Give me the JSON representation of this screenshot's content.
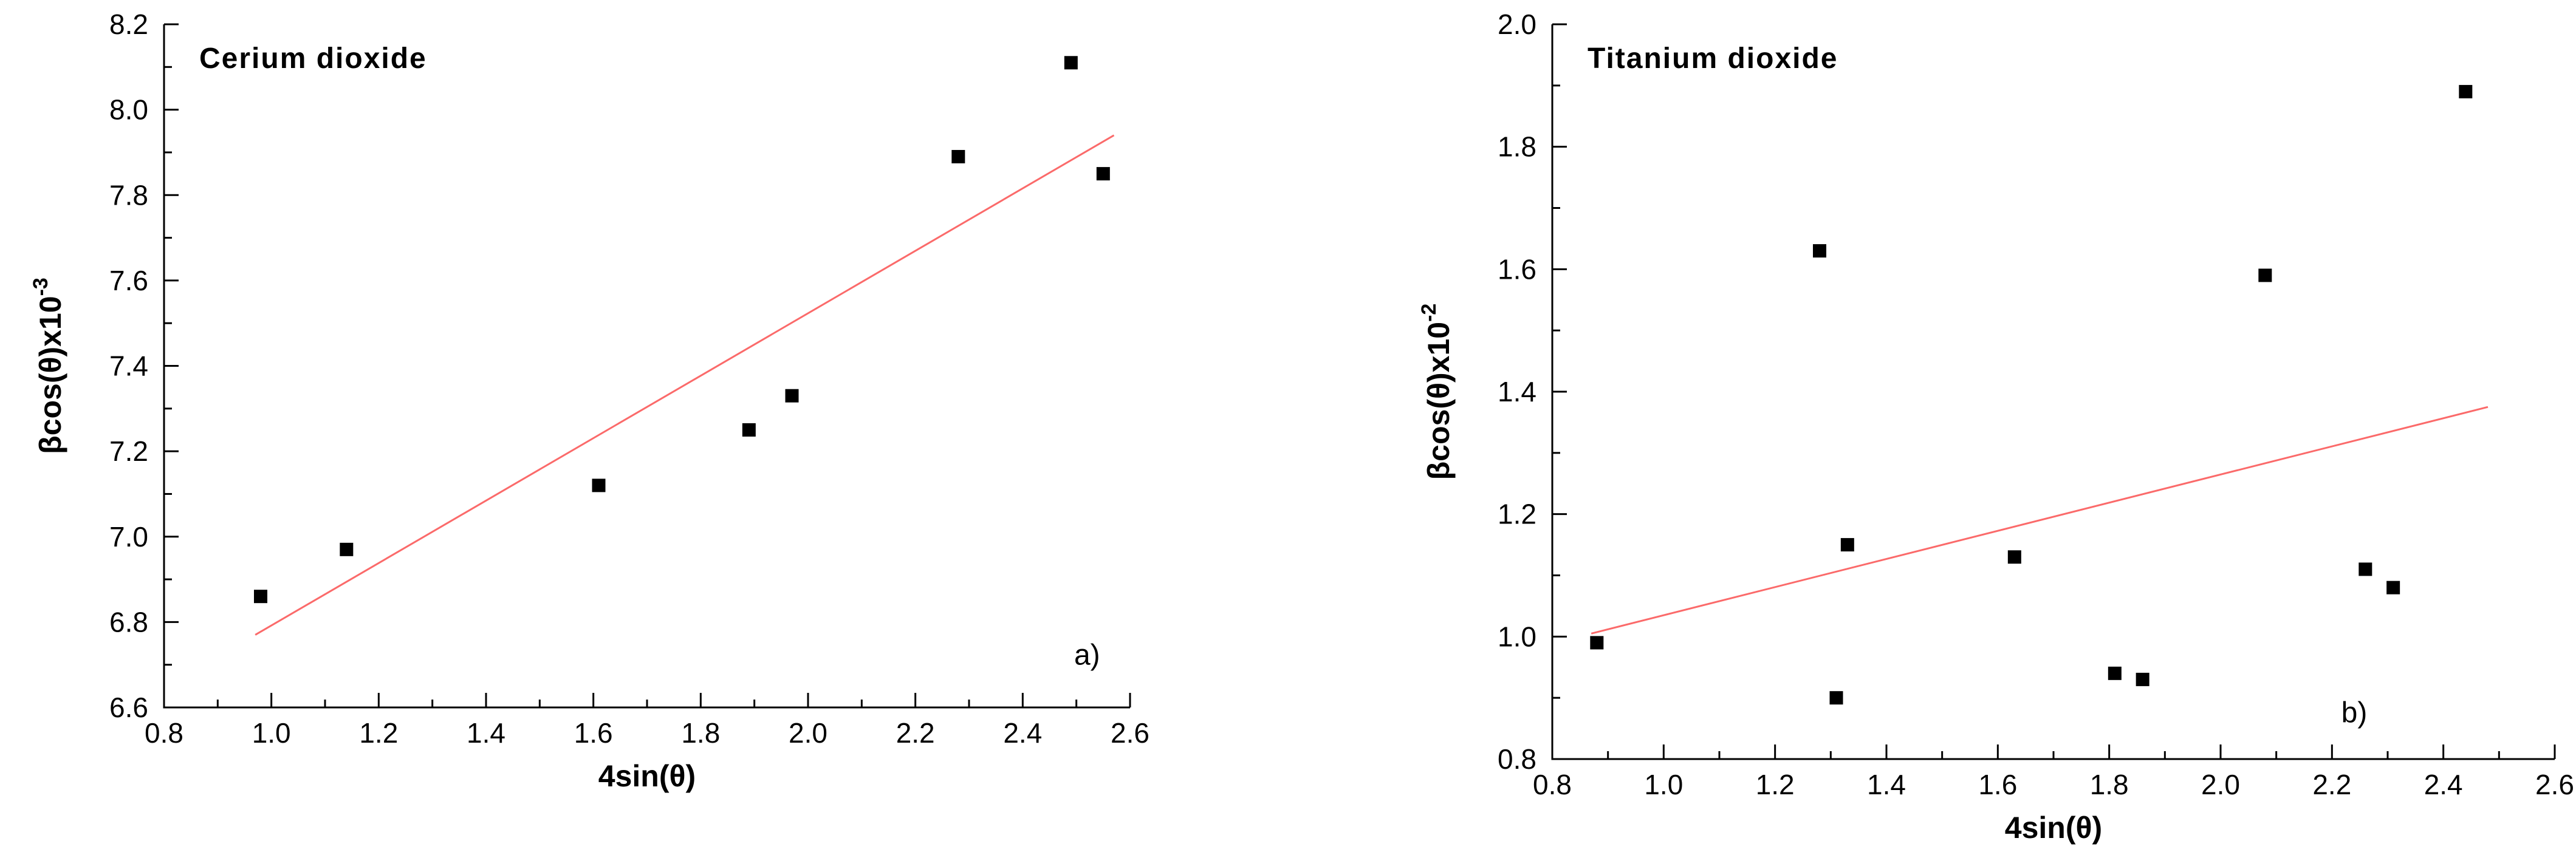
{
  "page": {
    "background": "#ffffff"
  },
  "chart_data": [
    {
      "type": "scatter",
      "title": "Cerium dioxide",
      "corner_label": "a)",
      "corner_label_pos": [
        2.52,
        6.7
      ],
      "xlabel": "4sin(θ)",
      "ylabel_base": "βcos(θ)x10",
      "ylabel_exponent": "-3",
      "xlim": [
        0.8,
        2.6
      ],
      "ylim": [
        6.6,
        8.2
      ],
      "x_major_step": 0.2,
      "x_minor_step": 0.1,
      "y_major_step": 0.2,
      "y_minor_step": 0.1,
      "x_tick_decimals": 1,
      "y_tick_decimals": 1,
      "points": [
        [
          0.98,
          6.86
        ],
        [
          1.14,
          6.97
        ],
        [
          1.61,
          7.12
        ],
        [
          1.89,
          7.25
        ],
        [
          1.97,
          7.33
        ],
        [
          2.28,
          7.89
        ],
        [
          2.49,
          8.11
        ],
        [
          2.55,
          7.85
        ]
      ],
      "fit_line": {
        "x1": 0.97,
        "y1": 6.77,
        "x2": 2.57,
        "y2": 7.94
      },
      "marker_color": "#000000",
      "line_color": "#fb6a6a",
      "grid": false,
      "legend": "none"
    },
    {
      "type": "scatter",
      "title": "Titanium dioxide",
      "corner_label": "b)",
      "corner_label_pos": [
        2.24,
        0.86
      ],
      "xlabel": "4sin(θ)",
      "ylabel_base": "βcos(θ)x10",
      "ylabel_exponent": "-2",
      "xlim": [
        0.8,
        2.6
      ],
      "ylim": [
        0.8,
        2.0
      ],
      "x_major_step": 0.2,
      "x_minor_step": 0.1,
      "y_major_step": 0.2,
      "y_minor_step": 0.1,
      "x_tick_decimals": 1,
      "y_tick_decimals": 1,
      "points": [
        [
          0.88,
          0.99
        ],
        [
          1.28,
          1.63
        ],
        [
          1.31,
          0.9
        ],
        [
          1.33,
          1.15
        ],
        [
          1.63,
          1.13
        ],
        [
          1.81,
          0.94
        ],
        [
          1.86,
          0.93
        ],
        [
          2.08,
          1.59
        ],
        [
          2.26,
          1.11
        ],
        [
          2.31,
          1.08
        ],
        [
          2.44,
          1.89
        ]
      ],
      "fit_line": {
        "x1": 0.87,
        "y1": 1.005,
        "x2": 2.48,
        "y2": 1.375
      },
      "marker_color": "#000000",
      "line_color": "#fb6a6a",
      "grid": false,
      "legend": "none"
    }
  ]
}
